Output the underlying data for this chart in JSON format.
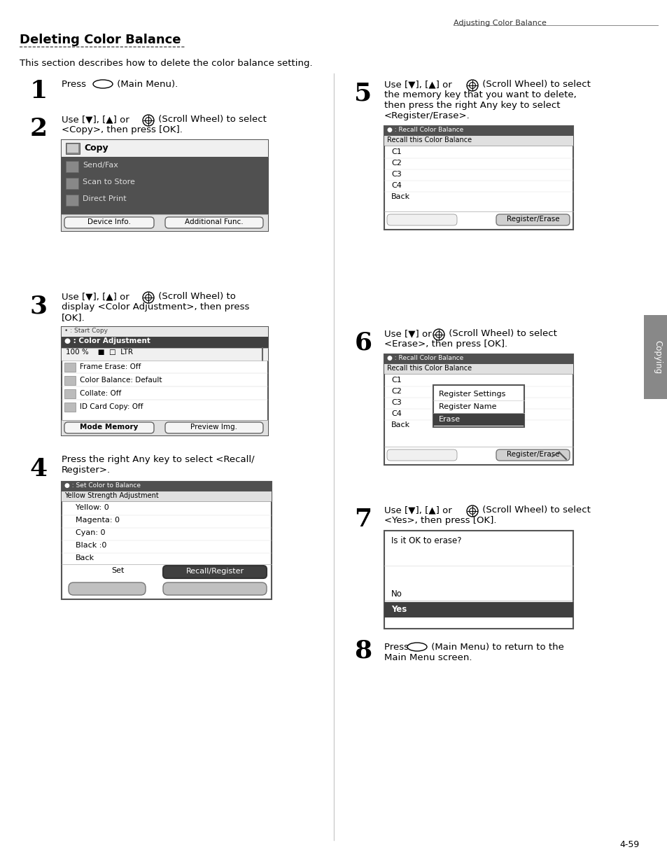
{
  "page_title_right": "Adjusting Color Balance",
  "section_title": "Deleting Color Balance",
  "intro_text": "This section describes how to delete the color balance setting.",
  "bg_color": "#ffffff",
  "step1_num": "1",
  "step2_num": "2",
  "step3_num": "3",
  "step4_num": "4",
  "step5_num": "5",
  "step6_num": "6",
  "step7_num": "7",
  "step8_num": "8",
  "page_num": "4-59",
  "side_tab": "Copying"
}
